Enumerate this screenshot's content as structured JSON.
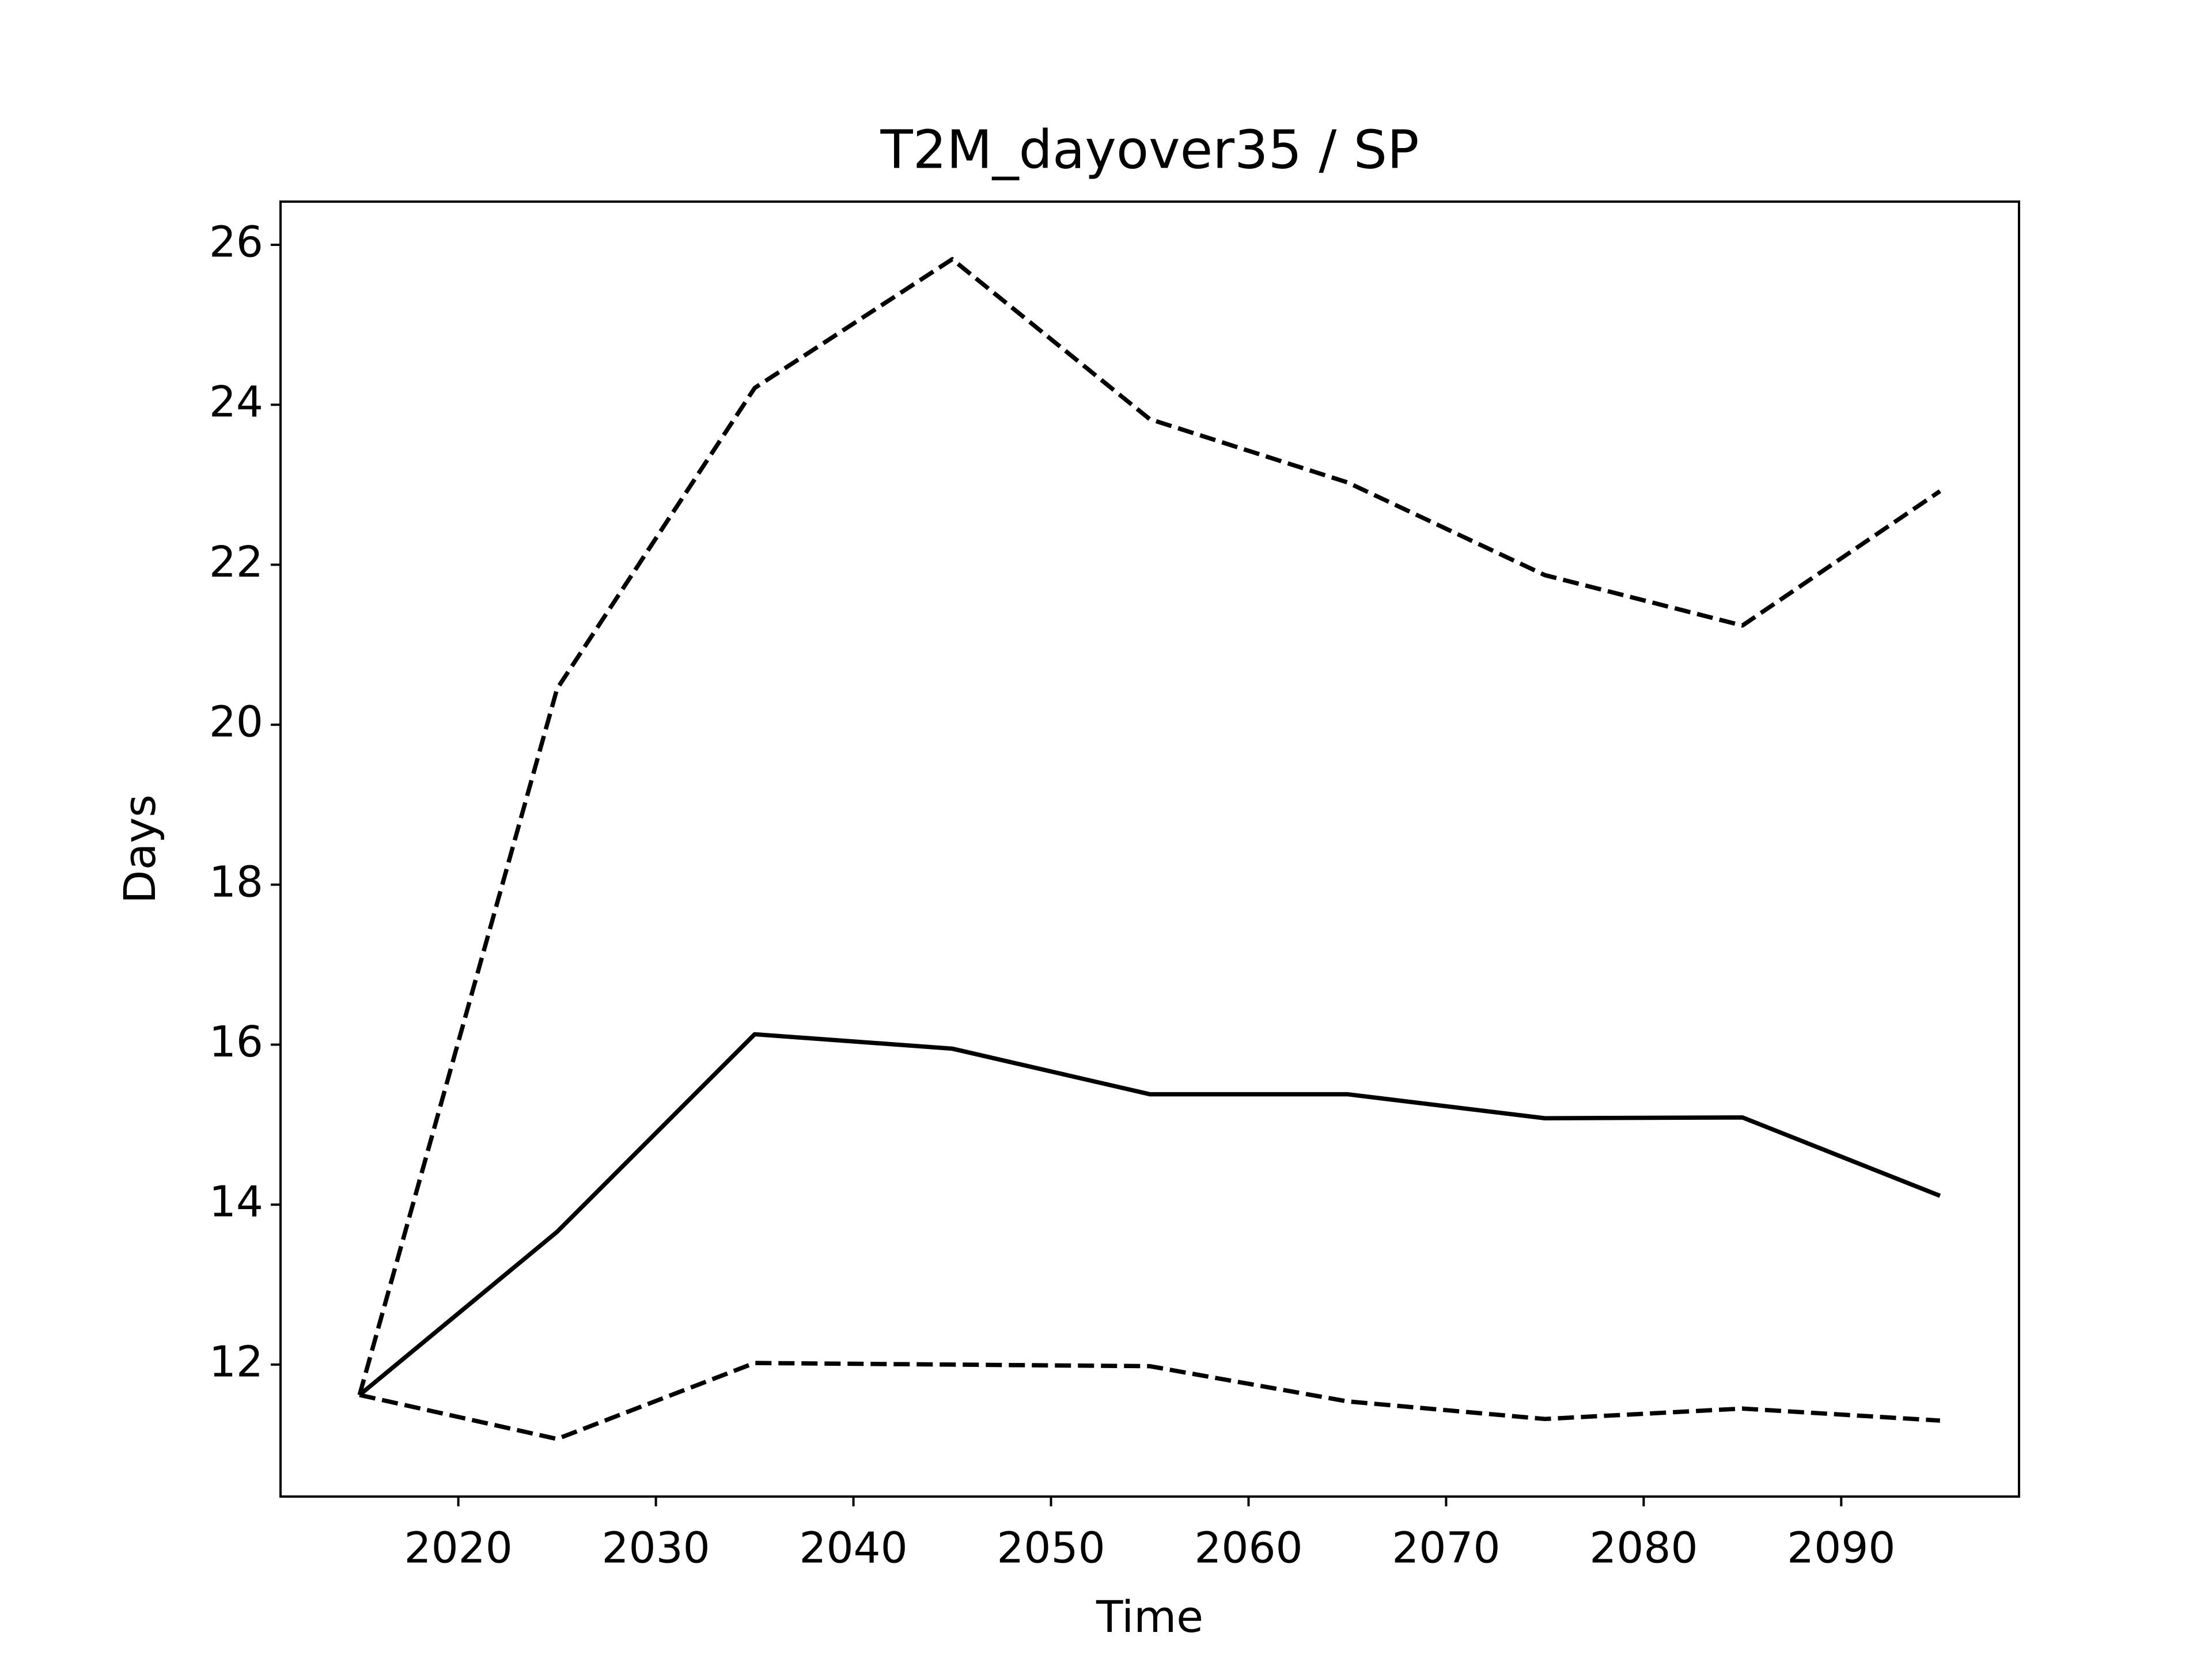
{
  "chart_data": {
    "type": "line",
    "title": "T2M_dayover35 / SP",
    "x_label": "Time",
    "y_label": "Days",
    "x": [
      2015,
      2025,
      2035,
      2045,
      2055,
      2065,
      2075,
      2085,
      2095
    ],
    "series": [
      {
        "color": "#000000",
        "style": "solid",
        "values": [
          11.62,
          13.66,
          16.13,
          15.95,
          15.38,
          15.38,
          15.08,
          15.09,
          14.11
        ]
      },
      {
        "color": "#000000",
        "style": "dashed",
        "values": [
          11.62,
          20.45,
          24.21,
          25.82,
          23.82,
          23.03,
          21.87,
          21.24,
          22.92
        ]
      },
      {
        "color": "#000000",
        "style": "dashed",
        "values": [
          11.62,
          11.07,
          12.02,
          12.0,
          11.98,
          11.54,
          11.32,
          11.45,
          11.3
        ]
      }
    ],
    "xlim": [
      2011,
      2099
    ],
    "xticks": [
      2020,
      2030,
      2040,
      2050,
      2060,
      2070,
      2080,
      2090
    ],
    "ylim": [
      10.35,
      26.54
    ],
    "yticks": [
      12,
      14,
      16,
      18,
      20,
      22,
      24,
      26
    ],
    "grid": false
  }
}
